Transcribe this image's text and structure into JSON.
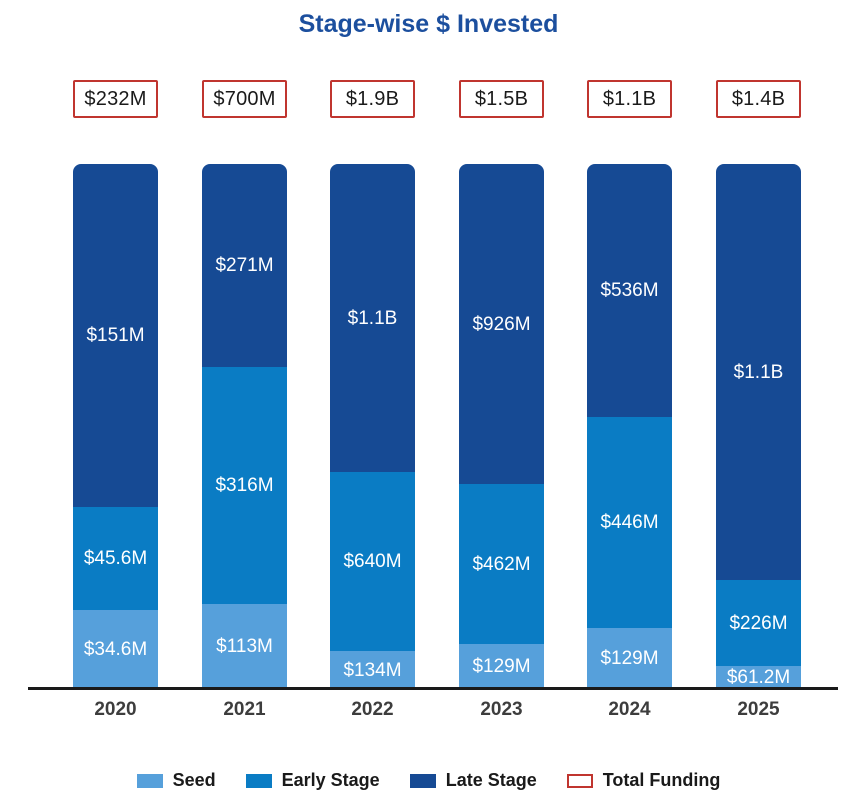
{
  "title": "Stage-wise $ Invested",
  "colors": {
    "title": "#1c4f9e",
    "seed": "#56a0db",
    "early_stage": "#0a7cc4",
    "late_stage": "#164a94",
    "total_outline": "#c0352f",
    "axis": "#1a1a1a"
  },
  "chart_data": {
    "type": "bar",
    "subtype": "stacked-normalized-height",
    "title": "Stage-wise $ Invested",
    "xlabel": "",
    "ylabel": "",
    "grid": false,
    "legend_position": "bottom",
    "categories": [
      "2020",
      "2021",
      "2022",
      "2023",
      "2024",
      "2025"
    ],
    "series": [
      {
        "name": "Seed",
        "color_key": "seed",
        "values": [
          34.6,
          113,
          134,
          129,
          129,
          61.2
        ],
        "labels": [
          "$34.6M",
          "$113M",
          "$134M",
          "$129M",
          "$129M",
          "$61.2M"
        ]
      },
      {
        "name": "Early Stage",
        "color_key": "early_stage",
        "values": [
          45.6,
          316,
          640,
          462,
          446,
          226
        ],
        "labels": [
          "$45.6M",
          "$316M",
          "$640M",
          "$462M",
          "$446M",
          "$226M"
        ]
      },
      {
        "name": "Late Stage",
        "color_key": "late_stage",
        "values": [
          151,
          271,
          1100,
          926,
          536,
          1100
        ],
        "labels": [
          "$151M",
          "$271M",
          "$1.1B",
          "$926M",
          "$536M",
          "$1.1B"
        ]
      }
    ],
    "totals": {
      "name": "Total Funding",
      "labels": [
        "$232M",
        "$700M",
        "$1.9B",
        "$1.5B",
        "$1.1B",
        "$1.4B"
      ]
    },
    "legend": [
      "Seed",
      "Early Stage",
      "Late Stage",
      "Total Funding"
    ]
  }
}
